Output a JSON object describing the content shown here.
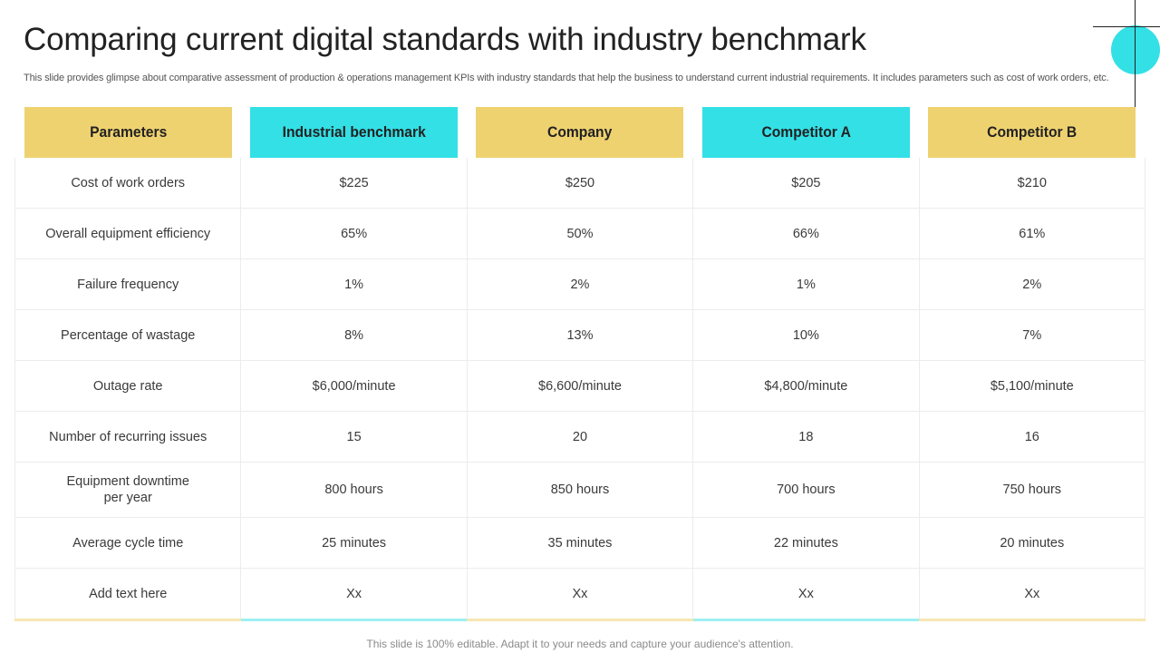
{
  "slide": {
    "title": "Comparing current digital standards with industry benchmark",
    "subtitle": "This slide provides glimpse about comparative assessment of production & operations management KPIs with industry standards that help the business to understand current industrial requirements. It includes parameters such as cost of work orders, etc.",
    "footer": "This slide is 100% editable. Adapt it to your needs and capture your audience's attention."
  },
  "colors": {
    "yellow": "#efd270",
    "cyan": "#33e0e6"
  },
  "table": {
    "headers": [
      "Parameters",
      "Industrial benchmark",
      "Company",
      "Competitor A",
      "Competitor B"
    ],
    "rows": [
      {
        "param": "Cost of work orders",
        "values": [
          "$225",
          "$250",
          "$205",
          "$210"
        ]
      },
      {
        "param": "Overall equipment efficiency",
        "values": [
          "65%",
          "50%",
          "66%",
          "61%"
        ]
      },
      {
        "param": "Failure frequency",
        "values": [
          "1%",
          "2%",
          "1%",
          "2%"
        ]
      },
      {
        "param": "Percentage of wastage",
        "values": [
          "8%",
          "13%",
          "10%",
          "7%"
        ]
      },
      {
        "param": "Outage rate",
        "values": [
          "$6,000/minute",
          "$6,600/minute",
          "$4,800/minute",
          "$5,100/minute"
        ]
      },
      {
        "param": "Number of recurring issues",
        "values": [
          "15",
          "20",
          "18",
          "16"
        ]
      },
      {
        "param_line1": "Equipment downtime",
        "param_line2": "per year",
        "values": [
          "800 hours",
          "850 hours",
          "700 hours",
          "750 hours"
        ]
      },
      {
        "param": "Average cycle time",
        "values": [
          "25 minutes",
          "35 minutes",
          "22 minutes",
          "20 minutes"
        ]
      },
      {
        "param": "Add text here",
        "values": [
          "Xx",
          "Xx",
          "Xx",
          "Xx"
        ]
      }
    ]
  }
}
